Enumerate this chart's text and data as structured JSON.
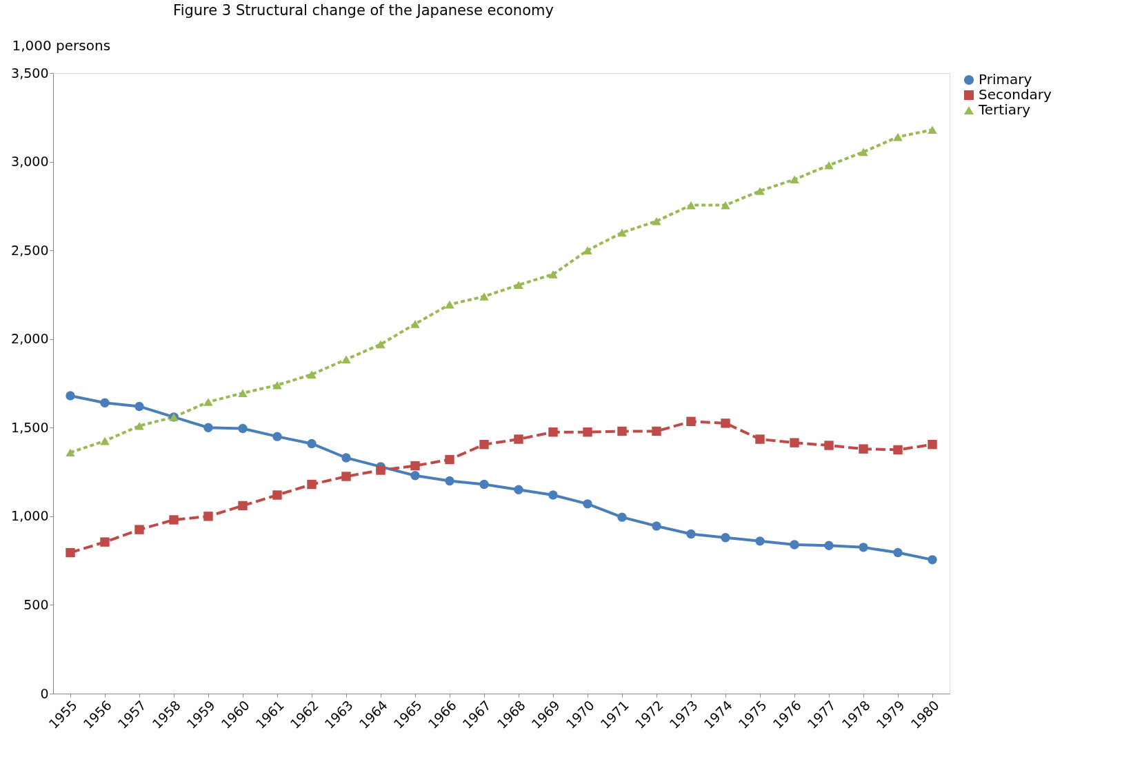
{
  "chart_data": {
    "type": "line",
    "title": "Figure 3 Structural change of the Japanese economy",
    "ylabel": "1,000 persons",
    "categories": [
      "1955",
      "1956",
      "1957",
      "1958",
      "1959",
      "1960",
      "1961",
      "1962",
      "1963",
      "1964",
      "1965",
      "1966",
      "1967",
      "1968",
      "1969",
      "1970",
      "1971",
      "1972",
      "1973",
      "1974",
      "1975",
      "1976",
      "1977",
      "1978",
      "1979",
      "1980"
    ],
    "series": [
      {
        "name": "Primary",
        "color": "#4a7ebb",
        "marker": "circle",
        "line_style": "solid",
        "values": [
          1680,
          1640,
          1620,
          1560,
          1500,
          1495,
          1450,
          1410,
          1330,
          1280,
          1230,
          1200,
          1180,
          1150,
          1120,
          1070,
          995,
          945,
          900,
          880,
          860,
          840,
          835,
          825,
          795,
          755
        ]
      },
      {
        "name": "Secondary",
        "color": "#be4b48",
        "marker": "square",
        "line_style": "dashed",
        "values": [
          795,
          855,
          925,
          980,
          1000,
          1060,
          1120,
          1180,
          1225,
          1260,
          1285,
          1320,
          1405,
          1435,
          1475,
          1475,
          1480,
          1480,
          1535,
          1525,
          1435,
          1415,
          1400,
          1380,
          1375,
          1405
        ]
      },
      {
        "name": "Tertiary",
        "color": "#98b954",
        "marker": "triangle",
        "line_style": "dotted",
        "values": [
          1360,
          1425,
          1510,
          1560,
          1645,
          1695,
          1740,
          1800,
          1885,
          1970,
          2085,
          2195,
          2240,
          2305,
          2365,
          2500,
          2600,
          2665,
          2755,
          2755,
          2835,
          2900,
          2980,
          3055,
          3140,
          3180
        ]
      }
    ],
    "ylim": [
      0,
      3500
    ],
    "yticks": [
      {
        "value": 0,
        "label": "0"
      },
      {
        "value": 500,
        "label": "500"
      },
      {
        "value": 1000,
        "label": "1,000"
      },
      {
        "value": 1500,
        "label": "1,500"
      },
      {
        "value": 2000,
        "label": "2,000"
      },
      {
        "value": 2500,
        "label": "2,500"
      },
      {
        "value": 3000,
        "label": "3,000"
      },
      {
        "value": 3500,
        "label": "3,500"
      }
    ],
    "grid": false,
    "legend": "right"
  }
}
